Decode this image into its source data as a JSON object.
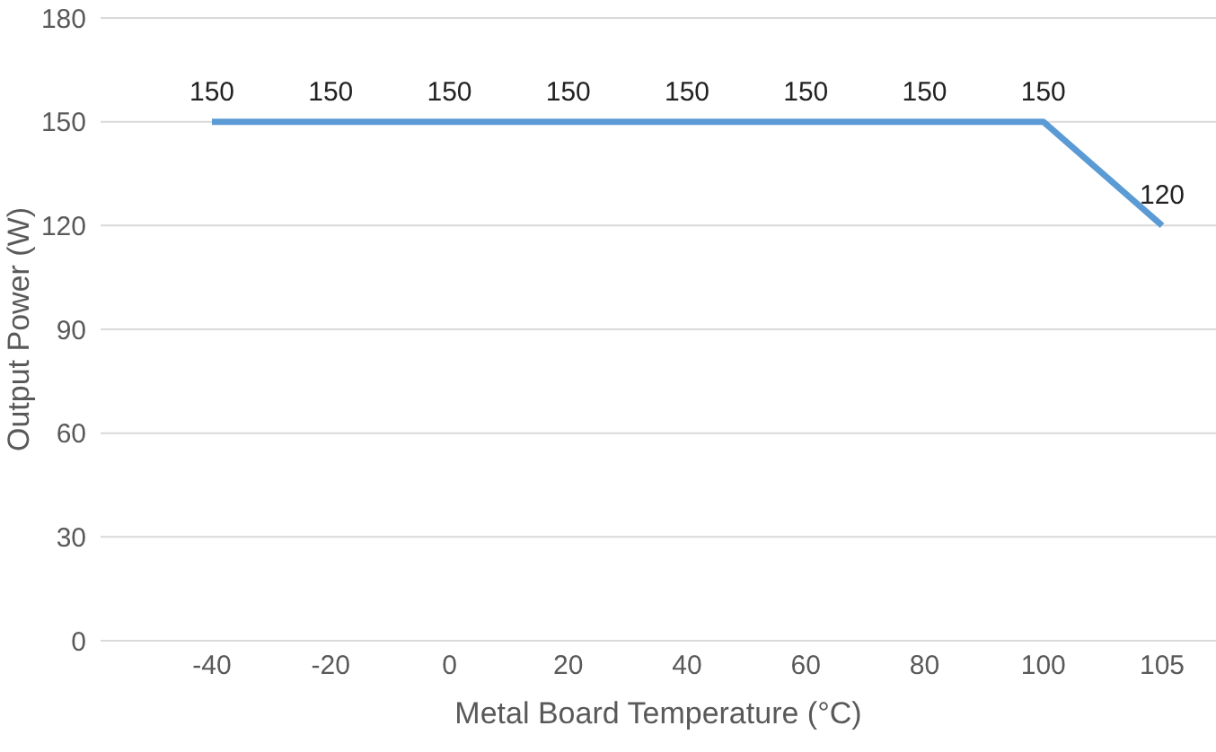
{
  "chart_data": {
    "type": "line",
    "xlabel": "Metal Board Temperature (°C)",
    "ylabel": "Output Power (W)",
    "categories": [
      "-40",
      "-20",
      "0",
      "20",
      "40",
      "60",
      "80",
      "100",
      "105"
    ],
    "series": [
      {
        "color": "#5b9bd5",
        "values": [
          150,
          150,
          150,
          150,
          150,
          150,
          150,
          150,
          120
        ]
      }
    ],
    "ylim": [
      0,
      180
    ],
    "yticks": [
      0,
      30,
      60,
      90,
      120,
      150,
      180
    ],
    "grid": "y",
    "data_labels": true,
    "marker": "none",
    "line_style": "solid",
    "legend": false
  }
}
